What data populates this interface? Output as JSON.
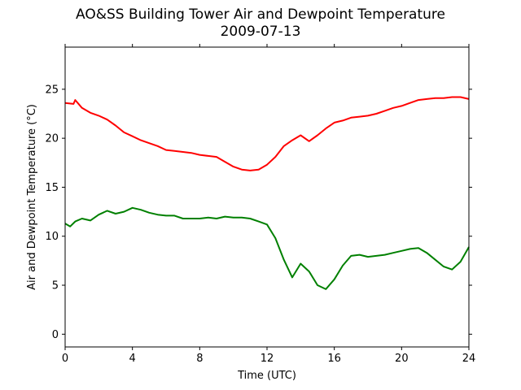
{
  "chart_data": {
    "type": "line",
    "title": "AO&SS Building Tower Air and Dewpoint Temperature",
    "subtitle": "2009-07-13",
    "xlabel": "Time (UTC)",
    "ylabel": "Air and Dewpoint Temperature (°C)",
    "xlim": [
      0,
      24
    ],
    "ylim": [
      -1.3,
      29.3
    ],
    "x_ticks": [
      0,
      4,
      8,
      12,
      16,
      20,
      24
    ],
    "y_ticks": [
      0,
      5,
      10,
      15,
      20,
      25
    ],
    "grid": false,
    "series": [
      {
        "color": "#ff0000",
        "x": [
          0,
          0.5,
          0.6,
          1,
          1.5,
          2,
          2.5,
          3,
          3.5,
          4,
          4.5,
          5,
          5.5,
          6,
          6.5,
          7,
          7.5,
          8,
          8.5,
          9,
          9.5,
          10,
          10.5,
          11,
          11.5,
          12,
          12.5,
          13,
          13.5,
          14,
          14.5,
          15,
          15.5,
          16,
          16.5,
          17,
          17.5,
          18,
          18.5,
          19,
          19.5,
          20,
          20.5,
          21,
          21.5,
          22,
          22.5,
          23,
          23.5,
          24
        ],
        "values": [
          23.6,
          23.5,
          23.9,
          23.1,
          22.6,
          22.3,
          21.9,
          21.3,
          20.6,
          20.2,
          19.8,
          19.5,
          19.2,
          18.8,
          18.7,
          18.6,
          18.5,
          18.3,
          18.2,
          18.1,
          17.6,
          17.1,
          16.8,
          16.7,
          16.8,
          17.3,
          18.1,
          19.2,
          19.8,
          20.3,
          19.7,
          20.3,
          21.0,
          21.6,
          21.8,
          22.1,
          22.2,
          22.3,
          22.5,
          22.8,
          23.1,
          23.3,
          23.6,
          23.9,
          24.0,
          24.1,
          24.1,
          24.2,
          24.2,
          24.0
        ]
      },
      {
        "color": "#008000",
        "x": [
          0,
          0.3,
          0.6,
          1,
          1.5,
          2,
          2.5,
          3,
          3.5,
          4,
          4.5,
          5,
          5.5,
          6,
          6.5,
          7,
          7.5,
          8,
          8.5,
          9,
          9.5,
          10,
          10.5,
          11,
          11.5,
          12,
          12.5,
          13,
          13.5,
          14,
          14.5,
          15,
          15.5,
          16,
          16.5,
          17,
          17.5,
          18,
          18.5,
          19,
          19.5,
          20,
          20.5,
          21,
          21.5,
          22,
          22.5,
          23,
          23.5,
          24
        ],
        "values": [
          11.3,
          11.0,
          11.5,
          11.8,
          11.6,
          12.2,
          12.6,
          12.3,
          12.5,
          12.9,
          12.7,
          12.4,
          12.2,
          12.1,
          12.1,
          11.8,
          11.8,
          11.8,
          11.9,
          11.8,
          12.0,
          11.9,
          11.9,
          11.8,
          11.5,
          11.2,
          9.8,
          7.6,
          5.8,
          7.2,
          6.4,
          5.0,
          4.6,
          5.6,
          7.0,
          8.0,
          8.1,
          7.9,
          8.0,
          8.1,
          8.3,
          8.5,
          8.7,
          8.8,
          8.3,
          7.6,
          6.9,
          6.6,
          7.4,
          8.9
        ]
      }
    ]
  }
}
